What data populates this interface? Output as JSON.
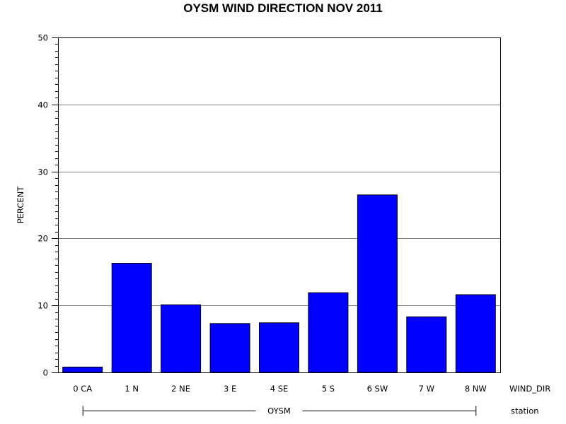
{
  "chart_data": {
    "type": "bar",
    "title": "OYSM WIND DIRECTION NOV 2011",
    "ylabel": "PERCENT",
    "xlabel": "WIND_DIR",
    "group_axis_label": "station",
    "group_name": "OYSM",
    "categories": [
      "0 CA",
      "1 N",
      "2 NE",
      "3 E",
      "4 SE",
      "5 S",
      "6 SW",
      "7 W",
      "8 NW"
    ],
    "values": [
      0.8,
      16.3,
      10.1,
      7.3,
      7.4,
      11.9,
      26.5,
      8.3,
      11.6
    ],
    "ylim": [
      0,
      50
    ],
    "yticks": [
      "0",
      "10",
      "20",
      "30",
      "40",
      "50"
    ],
    "grid": true,
    "bar_color": "#0000ff",
    "edge_color": "#000000",
    "grid_color": "#808080"
  }
}
